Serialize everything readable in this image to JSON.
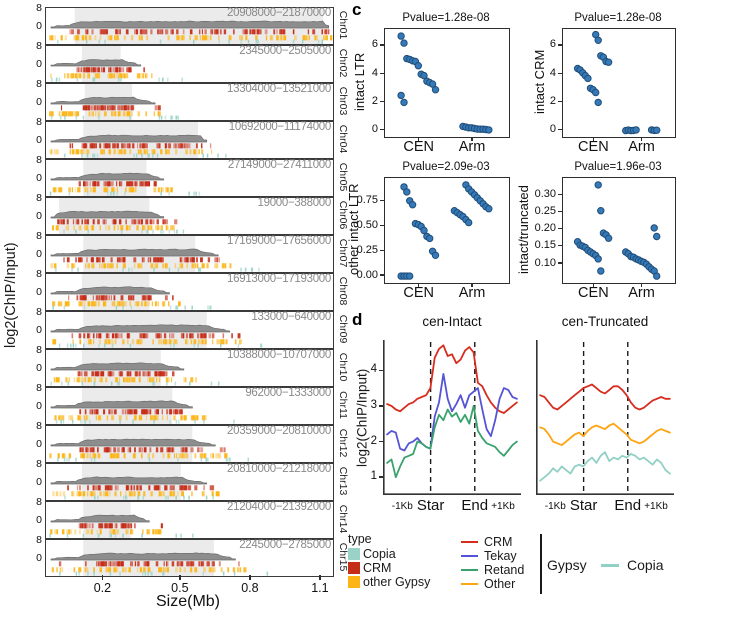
{
  "colors": {
    "copia_fill": "#9ad2c8",
    "crm_fill": "#c62d18",
    "other_gypsy_fill": "#fdb515",
    "line_crm": "#d62d1e",
    "line_tekay": "#5553d6",
    "line_retand": "#39a26c",
    "line_other": "#ffa40e",
    "line_copia": "#90d0c5",
    "dot_fill": "#3579b8",
    "dot_stroke": "#1f4e79",
    "signal_gray": "#8d8d8d",
    "signal_edge": "#6e6e6e",
    "shade_gray": "#ebebeb",
    "range_text": "#8a8a8a"
  },
  "chart_data": {
    "tracks_panel": {
      "type": "area",
      "ylabel": "log2(ChIP/Input)",
      "xlabel": "Size(Mb)",
      "x_ticks": [
        "0.2",
        "0.5",
        "0.8",
        "1.1"
      ],
      "y_ticks": [
        "8",
        "0"
      ],
      "tracks": [
        {
          "chr": "Chr01",
          "range": "20908000−21870000",
          "shade": [
            0.1,
            0.965
          ],
          "extent": 0.985
        },
        {
          "chr": "Chr02",
          "range": "2345000−2505000",
          "shade": [
            0.125,
            0.26
          ],
          "extent": 0.33
        },
        {
          "chr": "Chr03",
          "range": "13304000−13521000",
          "shade": [
            0.135,
            0.3
          ],
          "extent": 0.38
        },
        {
          "chr": "Chr04",
          "range": "10692000−11174000",
          "shade": [
            0.13,
            0.53
          ],
          "extent": 0.56
        },
        {
          "chr": "Chr05",
          "range": "27149000−27411000",
          "shade": [
            0.13,
            0.35
          ],
          "extent": 0.41
        },
        {
          "chr": "Chr06",
          "range": "19000−388000",
          "shade": [
            0.045,
            0.36
          ],
          "extent": 0.41
        },
        {
          "chr": "Chr07",
          "range": "17169000−17656000",
          "shade": [
            0.13,
            0.52
          ],
          "extent": 0.6
        },
        {
          "chr": "Chr08",
          "range": "16913000−17193000",
          "shade": [
            0.125,
            0.36
          ],
          "extent": 0.43
        },
        {
          "chr": "Chr09",
          "range": "133000−640000",
          "shade": [
            0.13,
            0.56
          ],
          "extent": 0.64
        },
        {
          "chr": "Chr10",
          "range": "10388000−10707000",
          "shade": [
            0.125,
            0.4
          ],
          "extent": 0.48
        },
        {
          "chr": "Chr11",
          "range": "962000−1333000",
          "shade": [
            0.125,
            0.44
          ],
          "extent": 0.51
        },
        {
          "chr": "Chr12",
          "range": "20359000−20810000",
          "shade": [
            0.13,
            0.51
          ],
          "extent": 0.59
        },
        {
          "chr": "Chr13",
          "range": "20810000−21218000",
          "shade": [
            0.125,
            0.47
          ],
          "extent": 0.56
        },
        {
          "chr": "Chr14",
          "range": "21204000−21392000",
          "shade": [
            0.13,
            0.295
          ],
          "extent": 0.36
        },
        {
          "chr": "Chr15",
          "range": "2245000−2785000",
          "shade": [
            0.13,
            0.585
          ],
          "extent": 0.66
        }
      ]
    },
    "panel_c": {
      "label": "c",
      "type": "scatter",
      "plots": [
        {
          "title": "Pvalue=1.28e-08",
          "ylabel": "intact LTR",
          "ytick_labels": [
            "0",
            "2",
            "4",
            "6"
          ],
          "ytick_values": [
            0,
            2,
            4,
            6
          ],
          "ylim": [
            -0.45,
            7.2
          ],
          "categories": [
            "CEN",
            "Arm"
          ],
          "values": {
            "CEN": [
              6.7,
              6.2,
              5.1,
              5.05,
              4.95,
              4.9,
              4.6,
              4.0,
              3.9,
              3.5,
              3.4,
              3.3,
              2.9,
              2.5,
              2.0
            ],
            "Arm": [
              0.3,
              0.25,
              0.2,
              0.2,
              0.15,
              0.12,
              0.1,
              0.1,
              0.08,
              0.05
            ]
          }
        },
        {
          "title": "Pvalue=1.28e-08",
          "ylabel": "intact CRM",
          "ytick_labels": [
            "0",
            "2",
            "4",
            "6"
          ],
          "ytick_values": [
            0,
            2,
            4,
            6
          ],
          "ylim": [
            -0.45,
            7.2
          ],
          "categories": [
            "CEN",
            "Arm"
          ],
          "values": {
            "CEN": [
              6.8,
              6.4,
              5.3,
              5.2,
              4.9,
              4.85,
              4.4,
              4.3,
              4.1,
              3.9,
              3.7,
              3.0,
              2.9,
              2.7,
              2.0
            ],
            "Arm": [
              0.05,
              0.02,
              0.03,
              0.0,
              0.04,
              0.0,
              0.02,
              0.05
            ]
          }
        },
        {
          "title": "Pvalue=2.09e-03",
          "ylabel": "other intact LTR",
          "ytick_labels": [
            "0.00",
            "0.25",
            "0.50",
            "0.75"
          ],
          "ytick_values": [
            0,
            0.25,
            0.5,
            0.75
          ],
          "ylim": [
            -0.07,
            0.99
          ],
          "categories": [
            "CEN",
            "Arm"
          ],
          "values": {
            "CEN": [
              0.9,
              0.85,
              0.76,
              0.72,
              0.53,
              0.52,
              0.5,
              0.46,
              0.4,
              0.38,
              0.25,
              0.21,
              0.0,
              0.0,
              0.0,
              0.0
            ],
            "Arm": [
              0.92,
              0.88,
              0.85,
              0.82,
              0.79,
              0.76,
              0.73,
              0.7,
              0.68,
              0.66,
              0.64,
              0.62,
              0.6,
              0.57,
              0.54
            ]
          }
        },
        {
          "title": "Pvalue=1.96e-03",
          "ylabel": "intact/truncated",
          "ytick_labels": [
            "0.10",
            "0.15",
            "0.20",
            "0.25",
            "0.30"
          ],
          "ytick_values": [
            0.1,
            0.15,
            0.2,
            0.25,
            0.3
          ],
          "ylim": [
            0.045,
            0.35
          ],
          "categories": [
            "CEN",
            "Arm"
          ],
          "values": {
            "CEN": [
              0.33,
              0.255,
              0.19,
              0.185,
              0.175,
              0.165,
              0.155,
              0.152,
              0.148,
              0.14,
              0.135,
              0.13,
              0.125,
              0.115,
              0.08
            ],
            "Arm": [
              0.205,
              0.18,
              0.135,
              0.13,
              0.122,
              0.12,
              0.115,
              0.112,
              0.108,
              0.105,
              0.1,
              0.092,
              0.085,
              0.08,
              0.065
            ]
          }
        }
      ]
    },
    "panel_d": {
      "label": "d",
      "type": "line",
      "ylabel": "log2(ChIP/Input)",
      "x_axis_labels": [
        "-1Kb",
        "Star",
        "End",
        "+1Kb"
      ],
      "plots": [
        {
          "title": "cen-Intact",
          "ytick_labels": [
            "1",
            "2",
            "3",
            "4"
          ],
          "ytick_values": [
            1,
            2,
            3,
            4
          ],
          "ylim": [
            0.5,
            4.85
          ],
          "series": [
            {
              "name": "CRM",
              "color": "line_crm",
              "values": [
                3.05,
                3.0,
                2.9,
                2.85,
                2.95,
                3.05,
                3.1,
                3.2,
                3.25,
                3.3,
                3.5,
                4.35,
                4.6,
                4.7,
                4.4,
                4.45,
                4.2,
                4.3,
                4.55,
                4.65,
                4.5,
                3.65,
                3.55,
                3.3,
                3.1,
                2.95,
                2.85,
                2.8,
                2.9,
                3.0,
                3.1
              ]
            },
            {
              "name": "Tekay",
              "color": "line_tekay",
              "values": [
                2.2,
                2.3,
                2.25,
                1.8,
                1.75,
                1.95,
                2.0,
                2.1,
                1.95,
                1.85,
                1.8,
                2.7,
                3.1,
                3.9,
                3.2,
                2.85,
                3.05,
                3.3,
                2.95,
                3.3,
                3.4,
                3.5,
                2.9,
                2.35,
                2.15,
                2.6,
                3.2,
                3.5,
                3.45,
                3.25,
                3.2
              ]
            },
            {
              "name": "Retand",
              "color": "line_retand",
              "values": [
                1.4,
                1.5,
                1.0,
                1.3,
                1.55,
                1.6,
                1.65,
                2.0,
                1.95,
                1.85,
                1.8,
                2.4,
                2.75,
                2.6,
                2.9,
                2.7,
                2.8,
                2.55,
                2.75,
                2.5,
                3.0,
                2.3,
                2.1,
                1.95,
                1.9,
                1.85,
                1.7,
                1.6,
                1.75,
                1.9,
                2.0
              ]
            }
          ]
        },
        {
          "title": "cen-Truncated",
          "ylim": [
            0.5,
            4.85
          ],
          "series": [
            {
              "name": "CRM",
              "color": "line_crm",
              "values": [
                3.3,
                3.25,
                3.1,
                2.95,
                2.9,
                3.0,
                3.1,
                3.2,
                3.3,
                3.4,
                3.5,
                3.55,
                3.6,
                3.5,
                3.4,
                3.35,
                3.45,
                3.55,
                3.55,
                3.45,
                3.3,
                3.1,
                2.95,
                2.9,
                2.95,
                3.05,
                3.15,
                3.2,
                3.25,
                3.2,
                3.2
              ]
            },
            {
              "name": "Other",
              "color": "line_other",
              "values": [
                2.4,
                2.35,
                2.2,
                2.0,
                1.95,
                1.9,
                2.0,
                2.1,
                2.2,
                2.25,
                2.15,
                2.3,
                2.4,
                2.45,
                2.4,
                2.35,
                2.45,
                2.5,
                2.4,
                2.3,
                2.2,
                2.05,
                2.0,
                1.95,
                2.0,
                2.1,
                2.2,
                2.3,
                2.35,
                2.3,
                2.25
              ]
            },
            {
              "name": "Copia",
              "color": "line_copia",
              "values": [
                0.9,
                1.0,
                1.1,
                1.25,
                1.15,
                1.3,
                1.2,
                1.1,
                1.3,
                1.35,
                1.3,
                1.45,
                1.55,
                1.4,
                1.6,
                1.7,
                1.45,
                1.55,
                1.5,
                1.6,
                1.55,
                1.65,
                1.6,
                1.5,
                1.55,
                1.45,
                1.35,
                1.5,
                1.4,
                1.2,
                1.1
              ]
            }
          ]
        }
      ]
    }
  },
  "legend": {
    "type_title": "type",
    "type_items": [
      {
        "label": "Copia",
        "color": "copia_fill"
      },
      {
        "label": "CRM",
        "color": "crm_fill"
      },
      {
        "label": "other Gypsy",
        "color": "other_gypsy_fill"
      }
    ],
    "line_items": [
      {
        "label": "CRM",
        "color": "line_crm"
      },
      {
        "label": "Tekay",
        "color": "line_tekay"
      },
      {
        "label": "Retand",
        "color": "line_retand"
      },
      {
        "label": "Other",
        "color": "line_other"
      }
    ],
    "gypsy_group_label": "Gypsy",
    "gypsy_line_item": {
      "label": "Copia",
      "color": "line_copia"
    }
  }
}
